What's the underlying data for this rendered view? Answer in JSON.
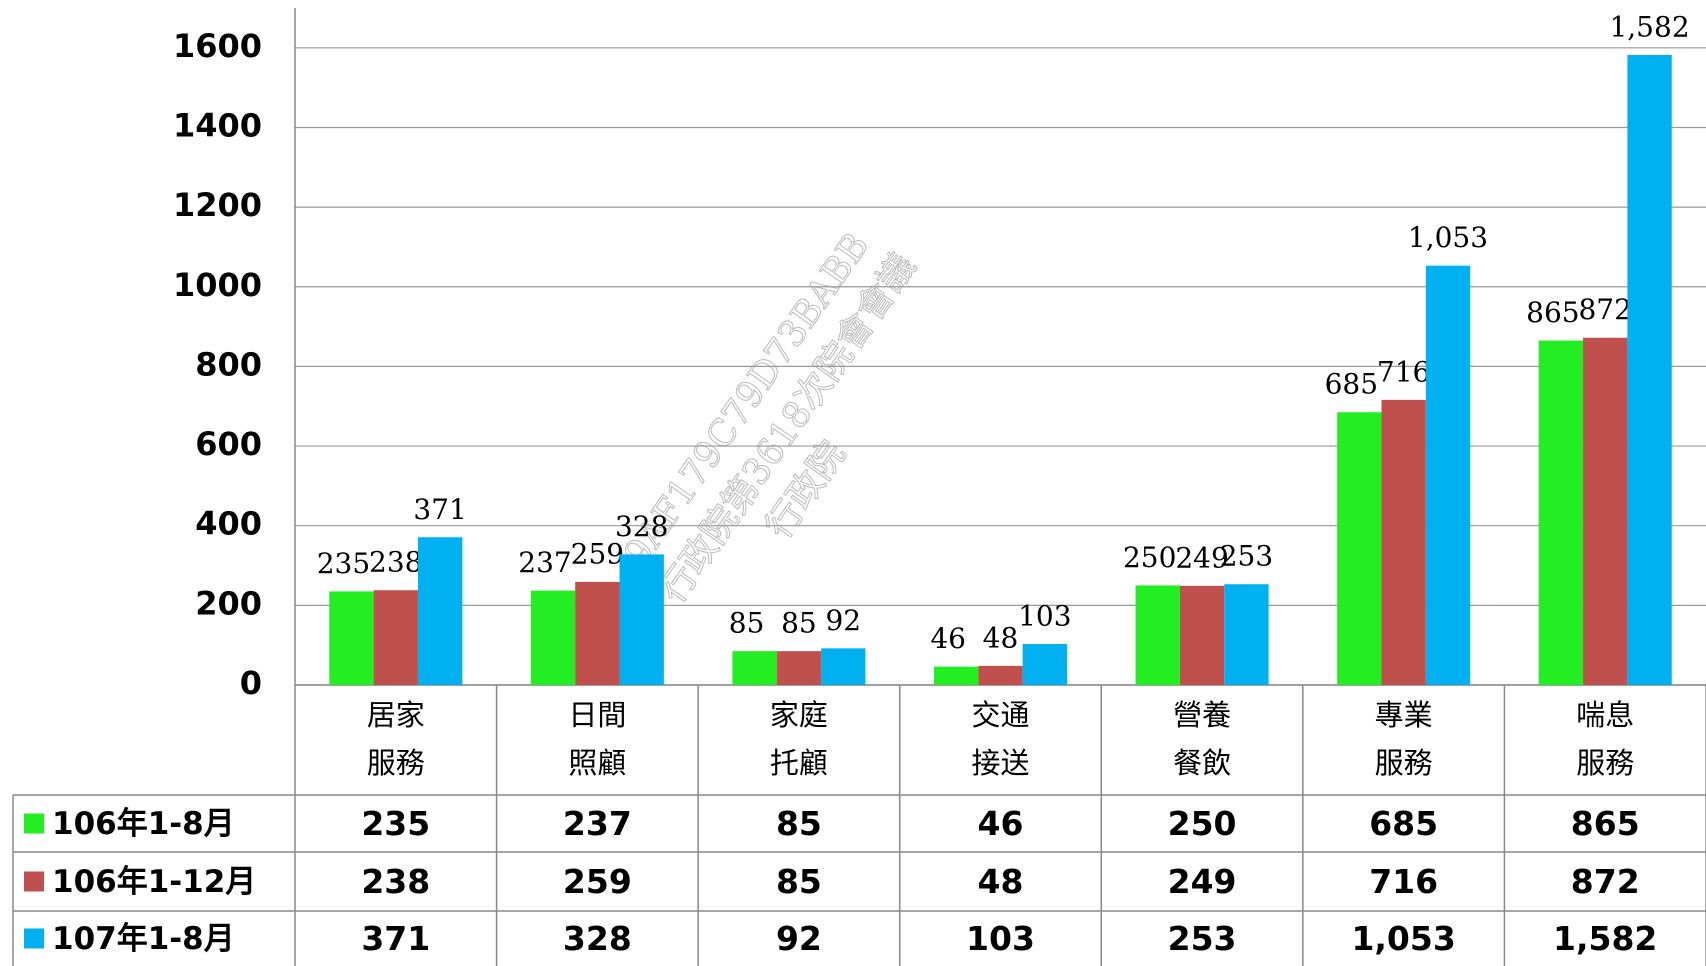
{
  "chart_data": {
    "type": "bar",
    "categories": [
      [
        "居家",
        "服務"
      ],
      [
        "日間",
        "照顧"
      ],
      [
        "家庭",
        "托顧"
      ],
      [
        "交通",
        "接送"
      ],
      [
        "營養",
        "餐飲"
      ],
      [
        "專業",
        "服務"
      ],
      [
        "喘息",
        "服務"
      ]
    ],
    "series": [
      {
        "name": "106年1-8月",
        "color": "#22ee22",
        "values": [
          235,
          237,
          85,
          46,
          250,
          685,
          865
        ],
        "value_labels": [
          "235",
          "237",
          "85",
          "46",
          "250",
          "685",
          "865"
        ]
      },
      {
        "name": "106年1-12月",
        "color": "#c0504d",
        "values": [
          238,
          259,
          85,
          48,
          249,
          716,
          872
        ],
        "value_labels": [
          "238",
          "259",
          "85",
          "48",
          "249",
          "716",
          "872"
        ]
      },
      {
        "name": "107年1-8月",
        "color": "#00b0f0",
        "values": [
          371,
          328,
          92,
          103,
          253,
          1053,
          1582
        ],
        "value_labels": [
          "371",
          "328",
          "92",
          "103",
          "253",
          "1,053",
          "1,582"
        ]
      }
    ],
    "ylim": [
      0,
      1700
    ],
    "yticks": [
      0,
      200,
      400,
      600,
      800,
      1000,
      1200,
      1400,
      1600
    ],
    "grid": true,
    "annotations": [
      "9AF179C79D73BABB",
      "行政院第3618次院會會議",
      "行政院"
    ]
  }
}
